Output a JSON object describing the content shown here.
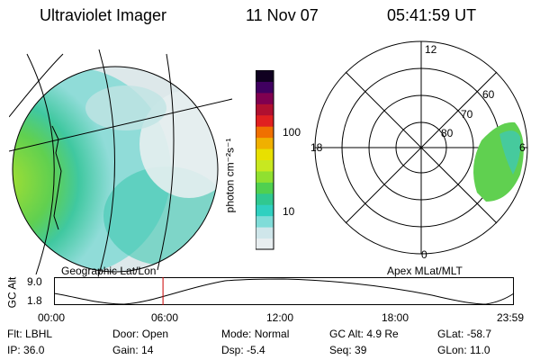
{
  "header": {
    "instrument": "Ultraviolet Imager",
    "date": "11 Nov 07",
    "time": "05:41:59 UT"
  },
  "left_panel": {
    "caption": "Geographic Lat/Lon"
  },
  "right_panel": {
    "caption": "Apex MLat/MLT",
    "mlt_labels": {
      "top": "12",
      "left": "18",
      "right": "6",
      "bottom": "0"
    },
    "lat_labels": [
      "60",
      "70",
      "80"
    ]
  },
  "colorbar": {
    "label": "photon cm⁻²s⁻¹",
    "ticks": [
      "100",
      "10"
    ],
    "colors": [
      "#e8eef0",
      "#cfe6ea",
      "#80dcd8",
      "#30d0c0",
      "#30c890",
      "#50d050",
      "#90e030",
      "#c8e820",
      "#e8e000",
      "#f0b000",
      "#f07000",
      "#e02020",
      "#b01030",
      "#800050",
      "#400060",
      "#100020"
    ]
  },
  "timeline": {
    "ylabel": "GC Alt",
    "y_ticks": [
      "9.0",
      "1.8"
    ],
    "x_ticks": [
      "00:00",
      "06:00",
      "12:00",
      "18:00",
      "23:59"
    ],
    "current_time": "05:41:59"
  },
  "status": {
    "row1": [
      {
        "key": "Flt:",
        "value": "LBHL"
      },
      {
        "key": "Door:",
        "value": "Open"
      },
      {
        "key": "Mode:",
        "value": "Normal"
      },
      {
        "key": "GC Alt:",
        "value": "4.9 Re"
      },
      {
        "key": "GLat:",
        "value": "-58.7"
      }
    ],
    "row2": [
      {
        "key": "IP:",
        "value": "36.0"
      },
      {
        "key": "Gain:",
        "value": "14"
      },
      {
        "key": "Dsp:",
        "value": "-5.4"
      },
      {
        "key": "Seq:",
        "value": "39"
      },
      {
        "key": "GLon:",
        "value": "11.0"
      }
    ]
  }
}
